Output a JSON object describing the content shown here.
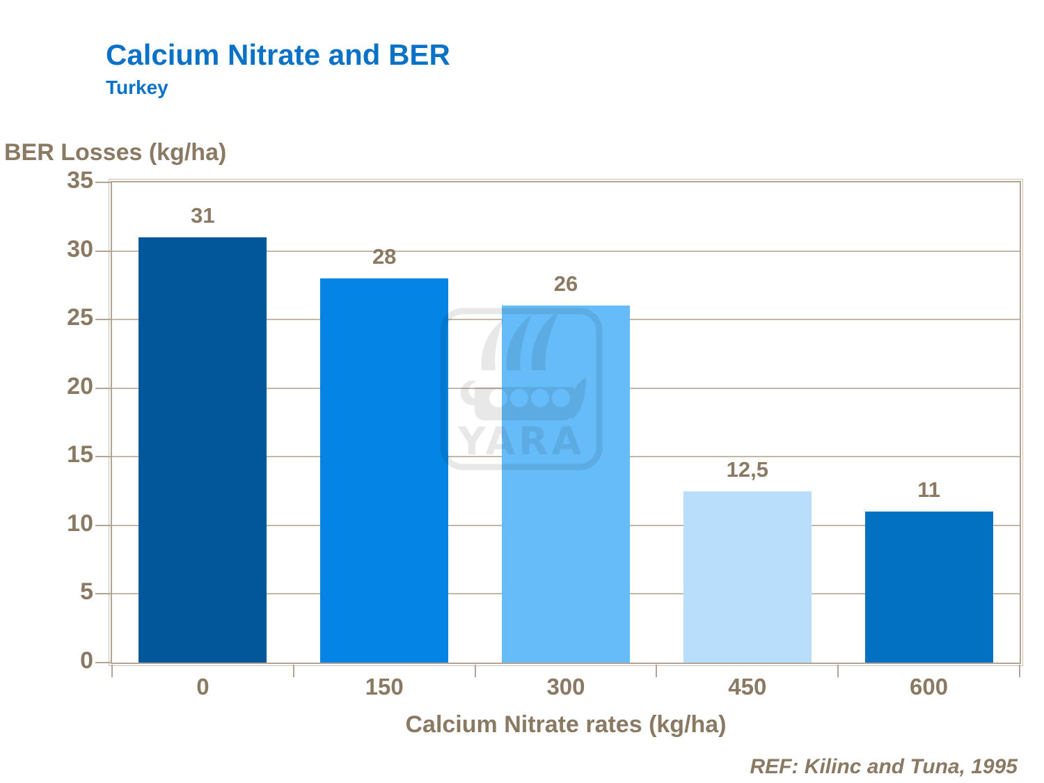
{
  "slide": {
    "title": "Calcium Nitrate and BER",
    "subtitle": "Turkey",
    "reference": "REF: Kilinc and Tuna, 1995"
  },
  "watermark": {
    "text": "YARA"
  },
  "chart_data": {
    "type": "bar",
    "title": "Calcium Nitrate and BER (Turkey)",
    "categories": [
      "0",
      "150",
      "300",
      "450",
      "600"
    ],
    "values": [
      31,
      28,
      26,
      12.5,
      11
    ],
    "value_labels": [
      "31",
      "28",
      "26",
      "12,5",
      "11"
    ],
    "xlabel": "Calcium Nitrate rates (kg/ha)",
    "ylabel": "BER Losses (kg/ha)",
    "ylim": [
      0,
      35
    ],
    "ytick_interval": 5,
    "ytick_labels": [
      "35",
      "30",
      "25",
      "20",
      "15",
      "10",
      "5",
      "0"
    ],
    "grid": true,
    "legend": false,
    "bar_colors": [
      "#02579B",
      "#0484E4",
      "#66BCF9",
      "#B9DEFB",
      "#0271C2"
    ],
    "text_color": "#8A7963",
    "title_color": "#0A72C6",
    "grid_color": "#C4B7A7",
    "frame_color": "#B3A493"
  }
}
